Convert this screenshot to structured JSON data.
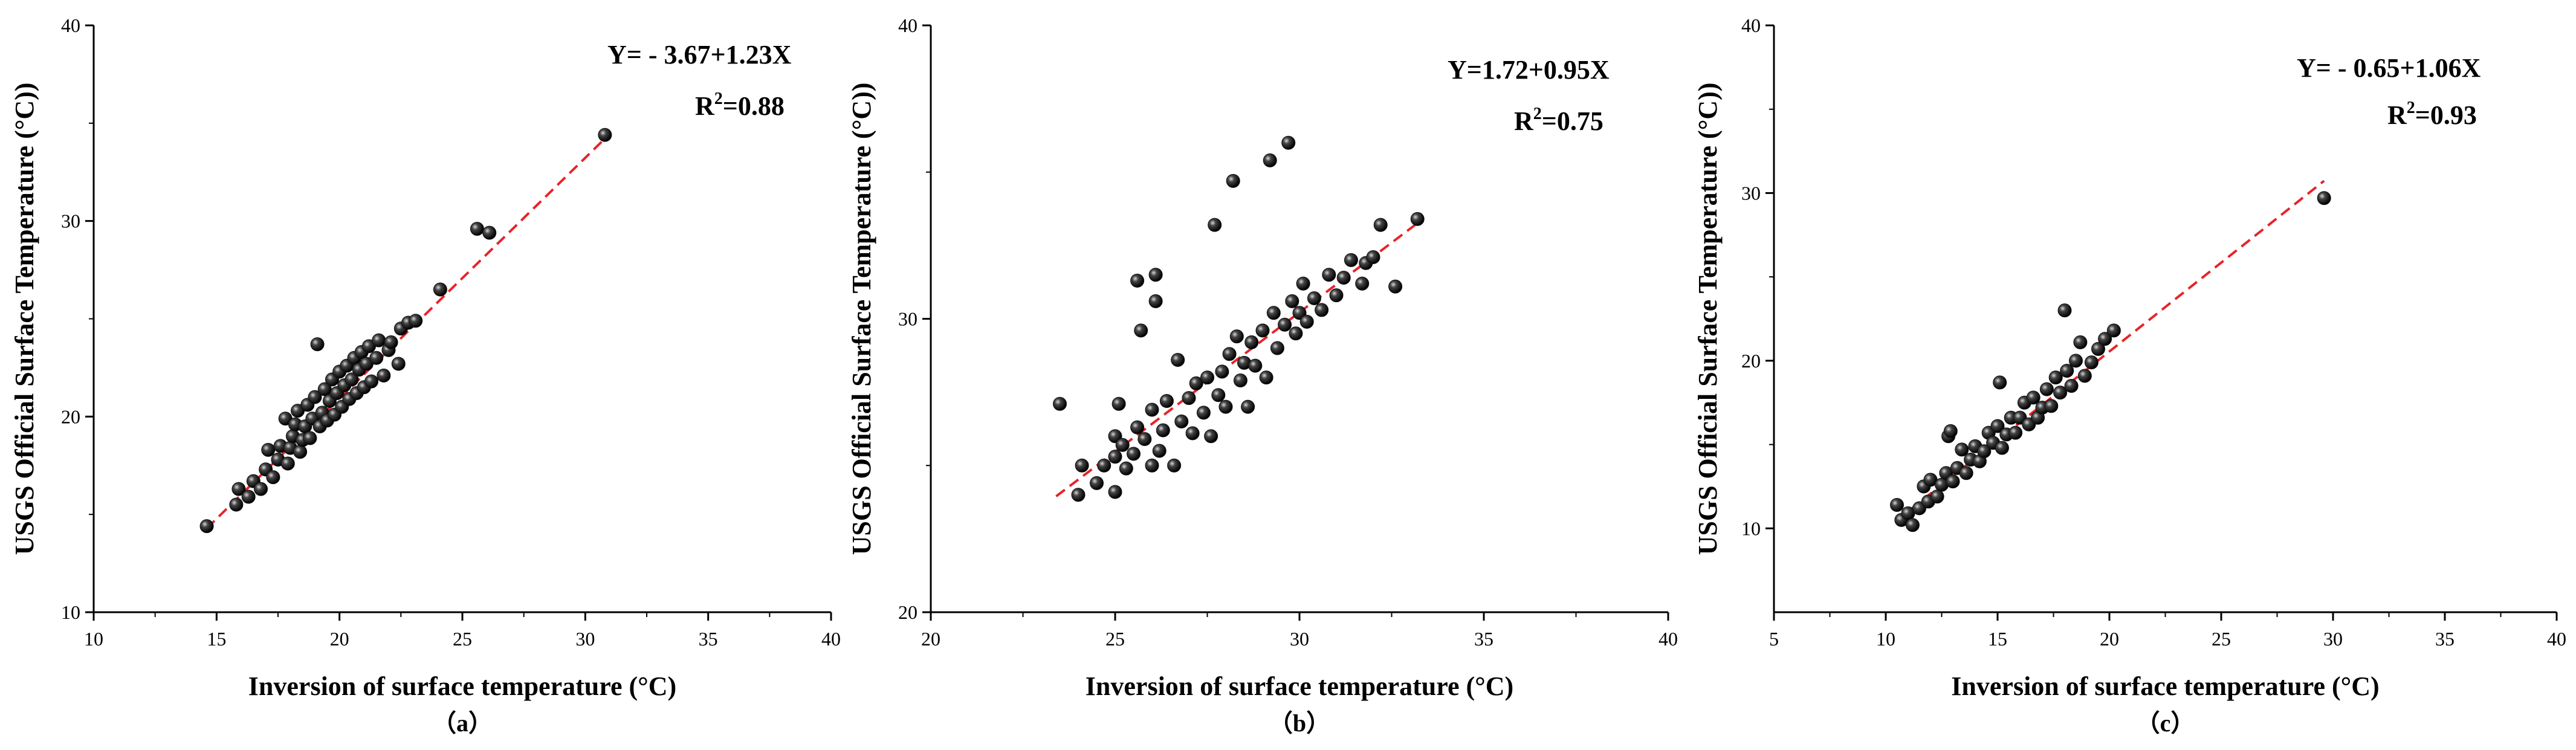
{
  "chart_data": [
    {
      "type": "scatter",
      "panel_label": "（a）",
      "xlabel": "Inversion of surface temperature (°C)",
      "ylabel": "USGS Official Surface Temperature (°C))",
      "xlim": [
        10,
        40
      ],
      "ylim": [
        10,
        40
      ],
      "xticks": [
        10,
        15,
        20,
        25,
        30,
        35,
        40
      ],
      "yticks": [
        10,
        20,
        30,
        40
      ],
      "equation": "Y= - 3.67+1.23X",
      "r2_prefix": "R",
      "r2_sup": "2",
      "r2_suffix": "=0.88",
      "fit": {
        "intercept": -3.67,
        "slope": 1.23,
        "x_range": [
          14.6,
          30.8
        ]
      },
      "marker_color": "#111111",
      "fit_line_color": "#e8232a",
      "series": [
        {
          "points": [
            [
              14.6,
              14.4
            ],
            [
              15.8,
              15.5
            ],
            [
              15.9,
              16.3
            ],
            [
              16.3,
              15.9
            ],
            [
              16.5,
              16.7
            ],
            [
              16.8,
              16.3
            ],
            [
              17.0,
              17.3
            ],
            [
              17.1,
              18.3
            ],
            [
              17.3,
              16.9
            ],
            [
              17.5,
              17.8
            ],
            [
              17.6,
              18.5
            ],
            [
              17.8,
              19.9
            ],
            [
              17.9,
              17.6
            ],
            [
              18.0,
              18.4
            ],
            [
              18.1,
              19.0
            ],
            [
              18.2,
              19.6
            ],
            [
              18.3,
              20.3
            ],
            [
              18.4,
              18.2
            ],
            [
              18.5,
              18.8
            ],
            [
              18.6,
              19.5
            ],
            [
              18.7,
              20.6
            ],
            [
              18.8,
              18.9
            ],
            [
              18.9,
              19.9
            ],
            [
              19.0,
              21.0
            ],
            [
              19.1,
              23.7
            ],
            [
              19.2,
              19.5
            ],
            [
              19.3,
              20.2
            ],
            [
              19.4,
              21.4
            ],
            [
              19.5,
              19.8
            ],
            [
              19.6,
              20.8
            ],
            [
              19.7,
              21.9
            ],
            [
              19.8,
              20.1
            ],
            [
              19.9,
              21.2
            ],
            [
              20.0,
              22.3
            ],
            [
              20.1,
              20.5
            ],
            [
              20.2,
              21.6
            ],
            [
              20.3,
              22.6
            ],
            [
              20.4,
              20.9
            ],
            [
              20.5,
              21.9
            ],
            [
              20.6,
              23.0
            ],
            [
              20.7,
              21.2
            ],
            [
              20.8,
              22.4
            ],
            [
              20.9,
              23.3
            ],
            [
              21.0,
              21.5
            ],
            [
              21.1,
              22.7
            ],
            [
              21.2,
              23.6
            ],
            [
              21.3,
              21.8
            ],
            [
              21.5,
              23.0
            ],
            [
              21.6,
              23.9
            ],
            [
              21.8,
              22.1
            ],
            [
              22.0,
              23.4
            ],
            [
              22.1,
              23.8
            ],
            [
              22.4,
              22.7
            ],
            [
              22.5,
              24.5
            ],
            [
              22.8,
              24.8
            ],
            [
              23.1,
              24.9
            ],
            [
              24.1,
              26.5
            ],
            [
              25.6,
              29.6
            ],
            [
              26.1,
              29.4
            ],
            [
              30.8,
              34.4
            ]
          ]
        }
      ]
    },
    {
      "type": "scatter",
      "panel_label": "（b）",
      "xlabel": "Inversion of surface temperature (°C)",
      "ylabel": "USGS Official Surface Temperature (°C))",
      "xlim": [
        20,
        40
      ],
      "ylim": [
        20,
        40
      ],
      "xticks": [
        20,
        25,
        30,
        35,
        40
      ],
      "yticks": [
        20,
        30,
        40
      ],
      "equation": "Y=1.72+0.95X",
      "r2_prefix": "R",
      "r2_sup": "2",
      "r2_suffix": "=0.75",
      "fit": {
        "intercept": 1.72,
        "slope": 0.95,
        "x_range": [
          23.4,
          33.2
        ]
      },
      "marker_color": "#111111",
      "fit_line_color": "#e8232a",
      "series": [
        {
          "points": [
            [
              23.5,
              27.1
            ],
            [
              24.0,
              24.0
            ],
            [
              24.1,
              25.0
            ],
            [
              24.5,
              24.4
            ],
            [
              24.7,
              25.0
            ],
            [
              25.0,
              24.1
            ],
            [
              25.0,
              25.3
            ],
            [
              25.0,
              26.0
            ],
            [
              25.1,
              27.1
            ],
            [
              25.2,
              25.7
            ],
            [
              25.3,
              24.9
            ],
            [
              25.5,
              25.4
            ],
            [
              25.6,
              26.3
            ],
            [
              25.6,
              31.3
            ],
            [
              25.7,
              29.6
            ],
            [
              25.8,
              25.9
            ],
            [
              26.0,
              25.0
            ],
            [
              26.0,
              26.9
            ],
            [
              26.1,
              31.5
            ],
            [
              26.1,
              30.6
            ],
            [
              26.2,
              25.5
            ],
            [
              26.3,
              26.2
            ],
            [
              26.4,
              27.2
            ],
            [
              26.6,
              25.0
            ],
            [
              26.7,
              28.6
            ],
            [
              26.8,
              26.5
            ],
            [
              27.0,
              27.3
            ],
            [
              27.1,
              26.1
            ],
            [
              27.2,
              27.8
            ],
            [
              27.4,
              26.8
            ],
            [
              27.5,
              28.0
            ],
            [
              27.6,
              26.0
            ],
            [
              27.7,
              33.2
            ],
            [
              27.8,
              27.4
            ],
            [
              27.9,
              28.2
            ],
            [
              28.0,
              27.0
            ],
            [
              28.1,
              28.8
            ],
            [
              28.2,
              34.7
            ],
            [
              28.3,
              29.4
            ],
            [
              28.4,
              27.9
            ],
            [
              28.5,
              28.5
            ],
            [
              28.6,
              27.0
            ],
            [
              28.7,
              29.2
            ],
            [
              28.8,
              28.4
            ],
            [
              29.0,
              29.6
            ],
            [
              29.1,
              28.0
            ],
            [
              29.2,
              35.4
            ],
            [
              29.3,
              30.2
            ],
            [
              29.4,
              29.0
            ],
            [
              29.6,
              29.8
            ],
            [
              29.7,
              36.0
            ],
            [
              29.8,
              30.6
            ],
            [
              29.9,
              29.5
            ],
            [
              30.0,
              30.2
            ],
            [
              30.1,
              31.2
            ],
            [
              30.2,
              29.9
            ],
            [
              30.4,
              30.7
            ],
            [
              30.6,
              30.3
            ],
            [
              30.8,
              31.5
            ],
            [
              31.0,
              30.8
            ],
            [
              31.2,
              31.4
            ],
            [
              31.4,
              32.0
            ],
            [
              31.7,
              31.2
            ],
            [
              31.8,
              31.9
            ],
            [
              32.0,
              32.1
            ],
            [
              32.2,
              33.2
            ],
            [
              32.6,
              31.1
            ],
            [
              33.2,
              33.4
            ]
          ]
        }
      ]
    },
    {
      "type": "scatter",
      "panel_label": "（c）",
      "xlabel": "Inversion of surface temperature (°C)",
      "ylabel": "USGS Official Surface Temperature (°C))",
      "xlim": [
        5,
        40
      ],
      "ylim": [
        5,
        40
      ],
      "xticks": [
        5,
        10,
        15,
        20,
        25,
        30,
        35,
        40
      ],
      "yticks": [
        10,
        20,
        30,
        40
      ],
      "equation": "Y= - 0.65+1.06X",
      "r2_prefix": "R",
      "r2_sup": "2",
      "r2_suffix": "=0.93",
      "fit": {
        "intercept": -0.65,
        "slope": 1.06,
        "x_range": [
          10.5,
          29.6
        ]
      },
      "marker_color": "#111111",
      "fit_line_color": "#e8232a",
      "series": [
        {
          "points": [
            [
              10.5,
              11.4
            ],
            [
              10.7,
              10.5
            ],
            [
              11.0,
              10.9
            ],
            [
              11.2,
              10.2
            ],
            [
              11.5,
              11.2
            ],
            [
              11.7,
              12.5
            ],
            [
              11.9,
              11.6
            ],
            [
              12.0,
              12.9
            ],
            [
              12.3,
              11.9
            ],
            [
              12.5,
              12.6
            ],
            [
              12.7,
              13.3
            ],
            [
              12.8,
              15.5
            ],
            [
              12.9,
              15.8
            ],
            [
              13.0,
              12.8
            ],
            [
              13.2,
              13.6
            ],
            [
              13.4,
              14.7
            ],
            [
              13.6,
              13.3
            ],
            [
              13.8,
              14.1
            ],
            [
              14.0,
              14.9
            ],
            [
              14.2,
              14.0
            ],
            [
              14.4,
              14.6
            ],
            [
              14.6,
              15.7
            ],
            [
              14.8,
              15.1
            ],
            [
              15.0,
              16.1
            ],
            [
              15.1,
              18.7
            ],
            [
              15.2,
              14.8
            ],
            [
              15.4,
              15.6
            ],
            [
              15.6,
              16.6
            ],
            [
              15.8,
              15.7
            ],
            [
              16.0,
              16.6
            ],
            [
              16.2,
              17.5
            ],
            [
              16.4,
              16.2
            ],
            [
              16.6,
              17.8
            ],
            [
              16.8,
              16.6
            ],
            [
              17.0,
              17.2
            ],
            [
              17.2,
              18.3
            ],
            [
              17.4,
              17.3
            ],
            [
              17.6,
              19.0
            ],
            [
              17.8,
              18.1
            ],
            [
              18.0,
              23.0
            ],
            [
              18.1,
              19.4
            ],
            [
              18.3,
              18.5
            ],
            [
              18.5,
              20.0
            ],
            [
              18.7,
              21.1
            ],
            [
              18.9,
              19.1
            ],
            [
              19.2,
              19.9
            ],
            [
              19.5,
              20.7
            ],
            [
              19.8,
              21.3
            ],
            [
              20.2,
              21.8
            ],
            [
              29.6,
              29.7
            ]
          ]
        }
      ]
    }
  ]
}
